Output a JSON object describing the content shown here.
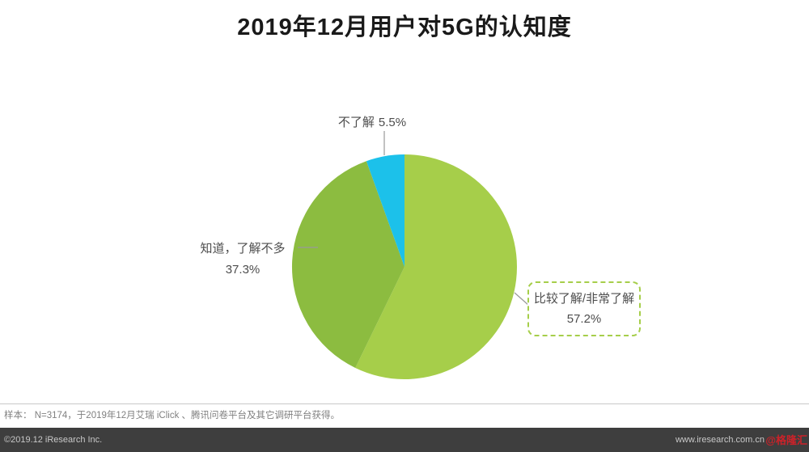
{
  "title": "2019年12月用户对5G的认知度",
  "chart_data": {
    "type": "pie",
    "title": "2019年12月用户对5G的认知度",
    "unit": "%",
    "legend_position": "none",
    "direction": "clockwise",
    "start_angle_deg": 0,
    "slices": [
      {
        "label": "比较了解/非常了解",
        "value": 57.2,
        "pct_label": "57.2%",
        "color": "#a6ce4a"
      },
      {
        "label": "知道，了解不多",
        "value": 37.3,
        "pct_label": "37.3%",
        "color": "#8cbc40"
      },
      {
        "label": "不了解",
        "value": 5.5,
        "pct_label": "5.5%",
        "color": "#1cc1ea"
      }
    ]
  },
  "footer": {
    "sample_note": "样本： N=3174，于2019年12月艾瑞 iClick 、腾讯问卷平台及其它调研平台获得。",
    "copyright": "©2019.12 iResearch Inc.",
    "website": "www.iresearch.com.cn",
    "watermark": "@格隆汇"
  },
  "colors": {
    "accent_green_light": "#a6ce4a",
    "accent_green_dark": "#8cbc40",
    "accent_cyan": "#1cc1ea",
    "bottom_bar_bg": "#3e3e3e",
    "watermark_red": "#cc2229"
  }
}
